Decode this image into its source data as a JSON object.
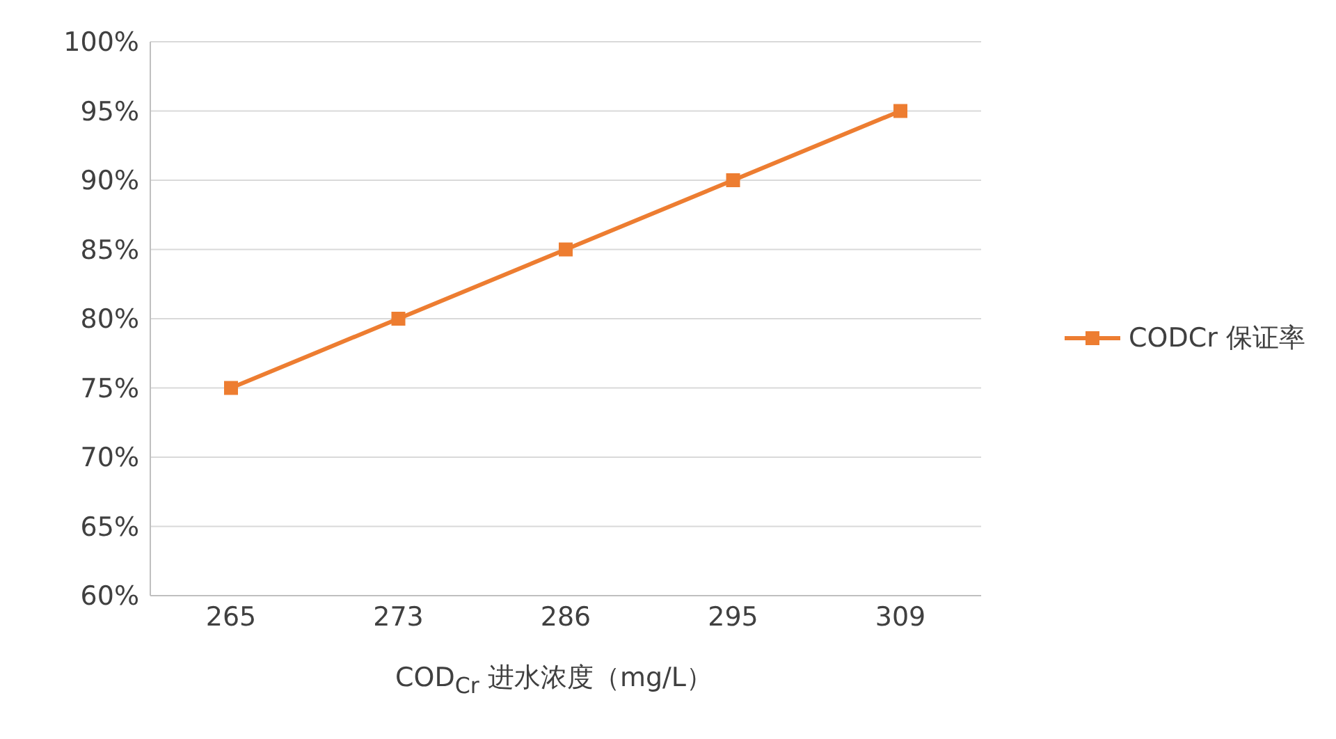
{
  "chart_data": {
    "type": "line",
    "xlabel": "COD$_{Cr}$ 进水浓度（mg/L）",
    "categories": [
      "265",
      "273",
      "286",
      "295",
      "309"
    ],
    "series": [
      {
        "name": "CODCr 保证率",
        "color": "#ed7d31",
        "values": [
          75,
          80,
          85,
          90,
          95
        ]
      }
    ],
    "ylim": [
      60,
      100
    ],
    "yticks": [
      {
        "value": 60,
        "label": "60%"
      },
      {
        "value": 65,
        "label": "65%"
      },
      {
        "value": 70,
        "label": "70%"
      },
      {
        "value": 75,
        "label": "75%"
      },
      {
        "value": 80,
        "label": "80%"
      },
      {
        "value": 85,
        "label": "85%"
      },
      {
        "value": 90,
        "label": "90%"
      },
      {
        "value": 95,
        "label": "95%"
      },
      {
        "value": 100,
        "label": "100%"
      }
    ],
    "grid": "y",
    "legend": "right",
    "marker": "square",
    "line_style": "solid"
  }
}
